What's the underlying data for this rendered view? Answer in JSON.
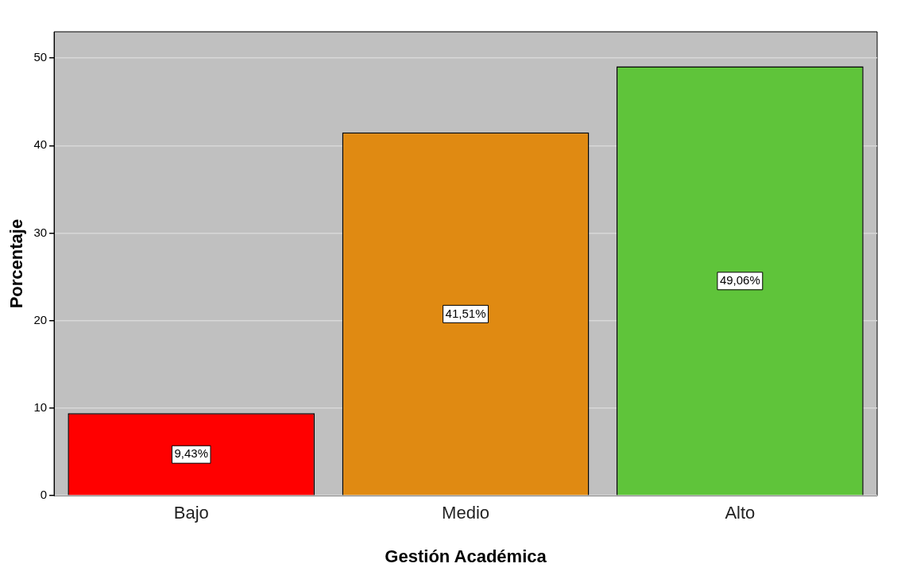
{
  "chart_data": {
    "type": "bar",
    "xlabel": "Gestión Académica",
    "ylabel": "Porcentaje",
    "categories": [
      "Bajo",
      "Medio",
      "Alto"
    ],
    "values": [
      9.43,
      41.51,
      49.06
    ],
    "colors": [
      "#ff0000",
      "#e08a12",
      "#5fc43a"
    ],
    "value_labels": [
      "9,43%",
      "41,51%",
      "49,06%"
    ],
    "ylim": [
      0,
      53
    ],
    "yticks": [
      0,
      10,
      20,
      30,
      40,
      50
    ],
    "grid": "y",
    "legend": false
  }
}
